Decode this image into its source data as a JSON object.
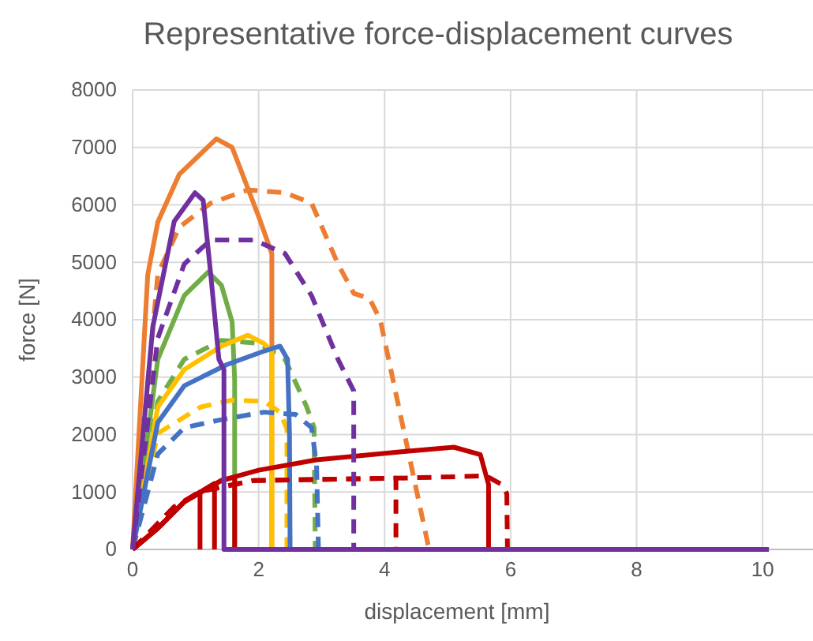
{
  "chart_data": {
    "type": "line",
    "title": "Representative force-displacement curves",
    "xlabel": "displacement [mm]",
    "ylabel": "force [N]",
    "xlim": [
      0,
      10.8
    ],
    "xticks": [
      0,
      2,
      4,
      6,
      8,
      10
    ],
    "ylim": [
      0,
      8000
    ],
    "yticks": [
      0,
      1000,
      2000,
      3000,
      4000,
      5000,
      6000,
      7000,
      8000
    ],
    "grid": true,
    "marker": "none",
    "series": [
      {
        "color": "#ed7d31",
        "line_style": "solid",
        "x": [
          0,
          0.24,
          0.4,
          0.74,
          1.33,
          1.58,
          2,
          2.21,
          2.21
        ],
        "values": [
          0,
          4780,
          5700,
          6530,
          7150,
          7000,
          5800,
          5150,
          0
        ]
      },
      {
        "color": "#ed7d31",
        "line_style": "dashed",
        "x": [
          0,
          0.4,
          0.74,
          1.24,
          1.83,
          2.42,
          2.84,
          3.26,
          3.51,
          3.76,
          3.93,
          4.69,
          4.72
        ],
        "values": [
          0,
          4790,
          5610,
          6030,
          6260,
          6210,
          6030,
          4970,
          4460,
          4370,
          4000,
          80,
          0
        ]
      },
      {
        "color": "#70ad47",
        "line_style": "solid",
        "x": [
          0,
          0.4,
          0.82,
          1.2,
          1.41,
          1.58,
          1.62,
          1.62
        ],
        "values": [
          0,
          3310,
          4420,
          4830,
          4600,
          3960,
          2950,
          0
        ]
      },
      {
        "color": "#70ad47",
        "line_style": "dashed",
        "x": [
          0,
          0.4,
          0.82,
          1.41,
          2,
          2.42,
          2.76,
          2.88,
          2.9
        ],
        "values": [
          0,
          2580,
          3310,
          3640,
          3590,
          3310,
          2490,
          2120,
          0
        ]
      },
      {
        "color": "#ffc000",
        "line_style": "solid",
        "x": [
          0,
          0.4,
          0.82,
          1.41,
          1.83,
          2.08,
          2.21,
          2.21
        ],
        "values": [
          0,
          2480,
          3130,
          3540,
          3730,
          3590,
          3450,
          0
        ]
      },
      {
        "color": "#ffc000",
        "line_style": "dashed",
        "x": [
          0,
          0.4,
          1.08,
          1.58,
          2.08,
          2.34,
          2.45,
          2.45
        ],
        "values": [
          0,
          2020,
          2480,
          2600,
          2580,
          2390,
          2100,
          0
        ]
      },
      {
        "color": "#4472c4",
        "line_style": "solid",
        "x": [
          0,
          0.4,
          0.82,
          1.5,
          2.08,
          2.34,
          2.46,
          2.49,
          2.5
        ],
        "values": [
          0,
          2210,
          2850,
          3220,
          3450,
          3540,
          3310,
          2020,
          0
        ]
      },
      {
        "color": "#4472c4",
        "line_style": "dashed",
        "x": [
          0,
          0.4,
          0.82,
          1.41,
          2.08,
          2.59,
          2.84,
          2.92,
          2.95
        ],
        "values": [
          0,
          1660,
          2120,
          2260,
          2390,
          2350,
          2120,
          1470,
          0
        ]
      },
      {
        "color": "#c00000",
        "line_style": "solid",
        "x": [
          0,
          0.4,
          0.82,
          1.41,
          2,
          2.92,
          4.27,
          5.1,
          5.52,
          5.65,
          5.65
        ],
        "values": [
          0,
          370,
          830,
          1200,
          1380,
          1560,
          1700,
          1780,
          1650,
          1130,
          0
        ]
      },
      {
        "color": "#c00000",
        "line_style": "solid",
        "x": [
          0,
          0.4,
          0.82,
          1.07,
          1.07
        ],
        "values": [
          0,
          370,
          830,
          1000,
          0
        ]
      },
      {
        "color": "#c00000",
        "line_style": "solid",
        "x": [
          0,
          0.4,
          0.82,
          1.3,
          1.3
        ],
        "values": [
          0,
          370,
          830,
          1150,
          0
        ]
      },
      {
        "color": "#c00000",
        "line_style": "solid",
        "x": [
          0,
          0.4,
          0.82,
          1.41,
          1.62,
          1.62
        ],
        "values": [
          0,
          370,
          830,
          1200,
          1260,
          0
        ]
      },
      {
        "color": "#c00000",
        "line_style": "dashed",
        "x": [
          0,
          0.66,
          1.08,
          1.92,
          4.18,
          5.61,
          5.86,
          5.94,
          5.95
        ],
        "values": [
          0,
          740,
          1010,
          1200,
          1240,
          1280,
          1130,
          970,
          0
        ]
      },
      {
        "color": "#c00000",
        "line_style": "dashed",
        "x": [
          0,
          0.66,
          1.08,
          1.92,
          4.18,
          4.18
        ],
        "values": [
          0,
          740,
          1010,
          1200,
          1240,
          0
        ]
      },
      {
        "color": "#7030a0",
        "line_style": "dashed",
        "x": [
          0,
          0.4,
          0.82,
          1.24,
          1.92,
          2.42,
          2.84,
          3.26,
          3.51,
          3.51
        ],
        "values": [
          0,
          3680,
          4970,
          5390,
          5390,
          5150,
          4420,
          3310,
          2760,
          0
        ]
      },
      {
        "color": "#7030a0",
        "line_style": "solid",
        "x": [
          0,
          0.32,
          0.66,
          0.99,
          1.12,
          1.24,
          1.37,
          1.45,
          1.45,
          10.1
        ],
        "values": [
          0,
          3870,
          5710,
          6210,
          6080,
          4790,
          3310,
          3130,
          0,
          0
        ]
      }
    ]
  }
}
